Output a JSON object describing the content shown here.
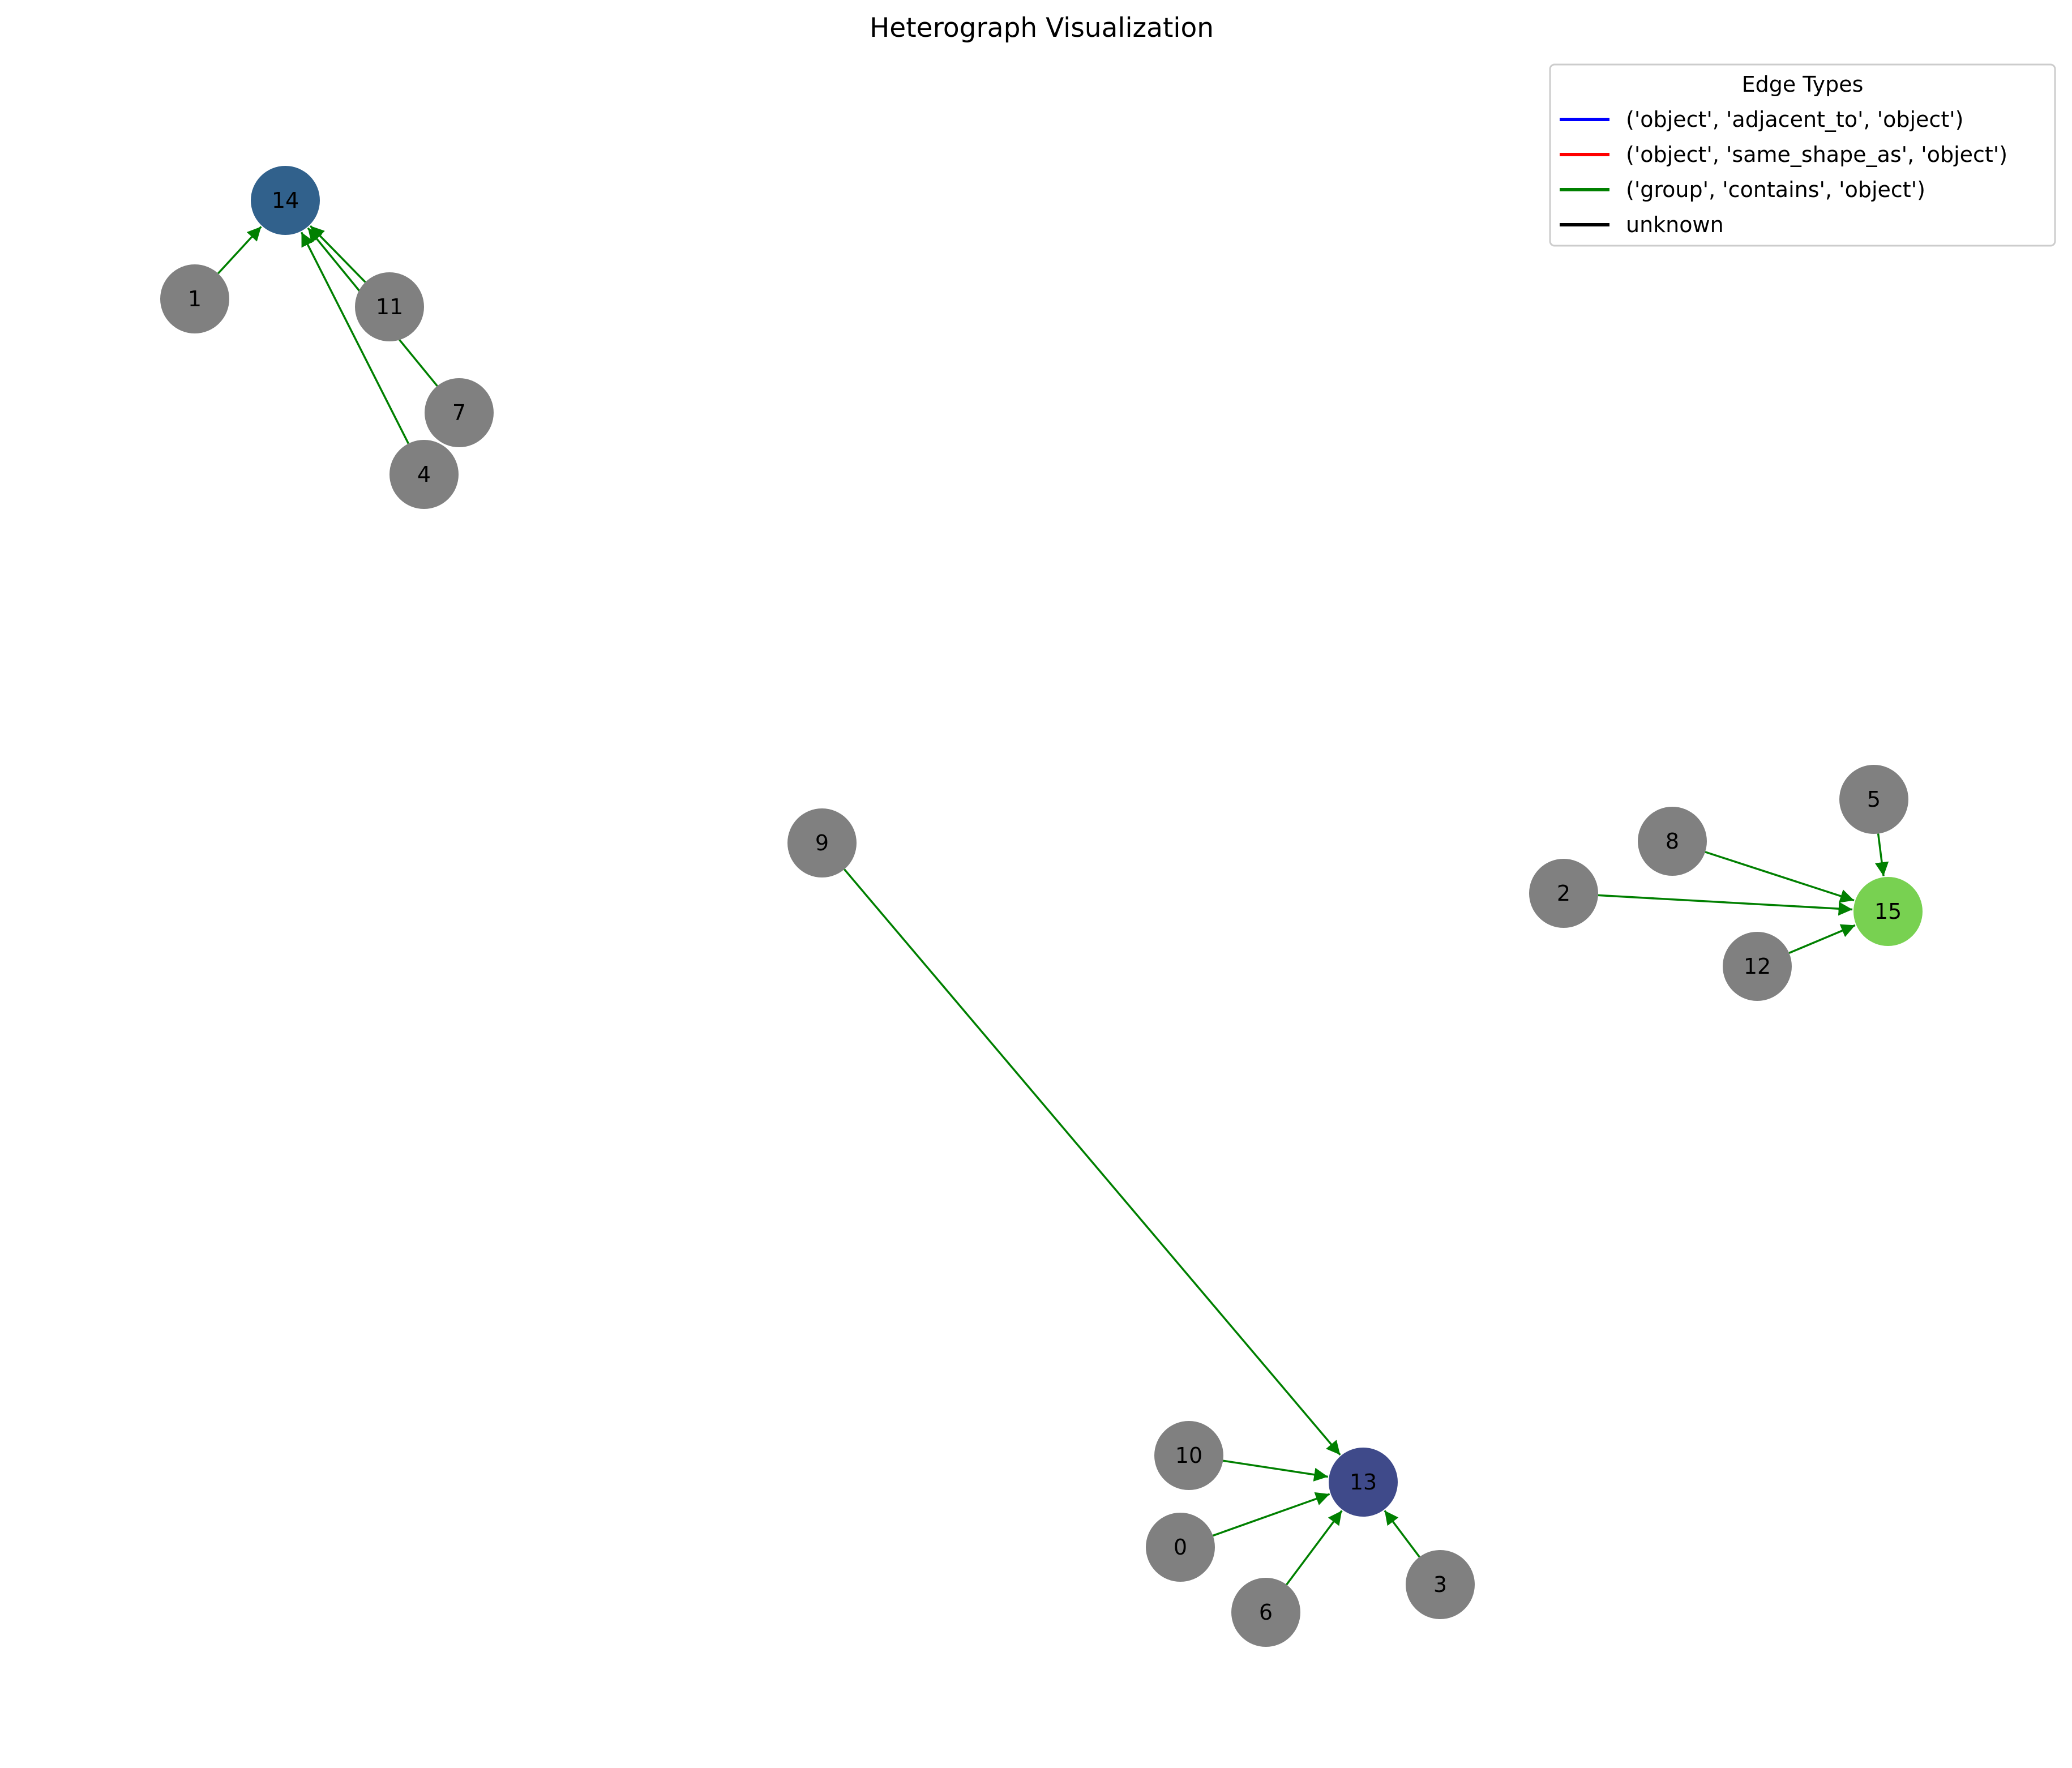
{
  "title": "Heterograph Visualization",
  "legend": {
    "title": "Edge Types",
    "entries": [
      {
        "label": "('object', 'adjacent_to', 'object')",
        "color": "#0000ff"
      },
      {
        "label": "('object', 'same_shape_as', 'object')",
        "color": "#ff0000"
      },
      {
        "label": "('group', 'contains', 'object')",
        "color": "#008000"
      },
      {
        "label": "unknown",
        "color": "#000000"
      }
    ]
  },
  "nodes": [
    {
      "id": "0",
      "color": "#808080"
    },
    {
      "id": "1",
      "color": "#808080"
    },
    {
      "id": "2",
      "color": "#808080"
    },
    {
      "id": "3",
      "color": "#808080"
    },
    {
      "id": "4",
      "color": "#808080"
    },
    {
      "id": "5",
      "color": "#808080"
    },
    {
      "id": "6",
      "color": "#808080"
    },
    {
      "id": "7",
      "color": "#808080"
    },
    {
      "id": "8",
      "color": "#808080"
    },
    {
      "id": "9",
      "color": "#808080"
    },
    {
      "id": "10",
      "color": "#808080"
    },
    {
      "id": "11",
      "color": "#808080"
    },
    {
      "id": "12",
      "color": "#808080"
    },
    {
      "id": "13",
      "color": "#3f4a8a"
    },
    {
      "id": "14",
      "color": "#31618c"
    },
    {
      "id": "15",
      "color": "#78d151"
    }
  ],
  "edges": [
    {
      "source": "1",
      "target": "14",
      "color": "#008000"
    },
    {
      "source": "11",
      "target": "14",
      "color": "#008000"
    },
    {
      "source": "7",
      "target": "14",
      "color": "#008000"
    },
    {
      "source": "4",
      "target": "14",
      "color": "#008000"
    },
    {
      "source": "9",
      "target": "13",
      "color": "#008000"
    },
    {
      "source": "10",
      "target": "13",
      "color": "#008000"
    },
    {
      "source": "0",
      "target": "13",
      "color": "#008000"
    },
    {
      "source": "6",
      "target": "13",
      "color": "#008000"
    },
    {
      "source": "3",
      "target": "13",
      "color": "#008000"
    },
    {
      "source": "5",
      "target": "15",
      "color": "#008000"
    },
    {
      "source": "8",
      "target": "15",
      "color": "#008000"
    },
    {
      "source": "2",
      "target": "15",
      "color": "#008000"
    },
    {
      "source": "12",
      "target": "15",
      "color": "#008000"
    }
  ]
}
